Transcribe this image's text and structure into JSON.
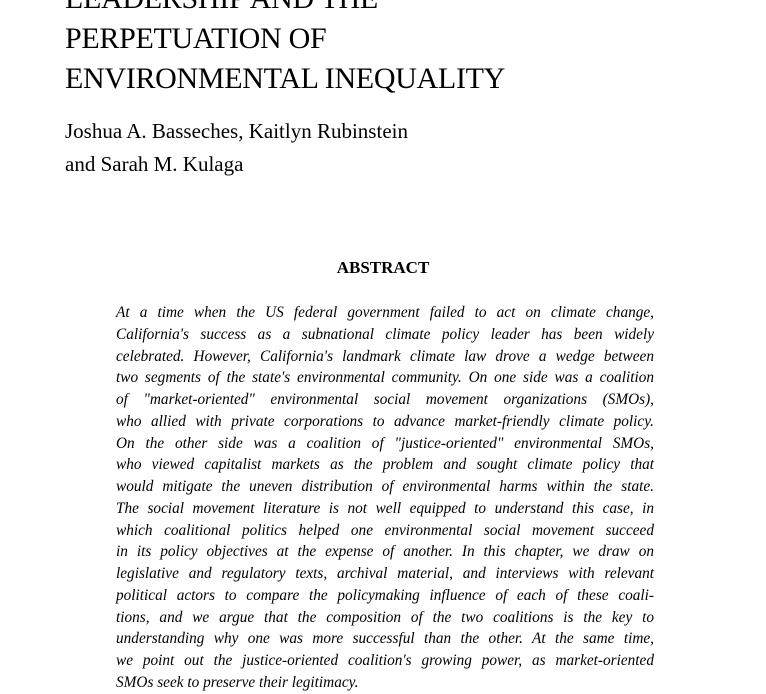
{
  "title_lines": [
    "LEADERSHIP AND THE",
    "PERPETUATION OF",
    "ENVIRONMENTAL INEQUALITY"
  ],
  "author_lines": [
    "Joshua A. Basseches, Kaitlyn Rubinstein",
    "and Sarah M. Kulaga"
  ],
  "abstract_heading": "ABSTRACT",
  "abstract_lines": [
    "At a time when the US federal government failed to act on climate change,",
    "California's success as a subnational climate policy leader has been widely",
    "celebrated. However, California's landmark climate law drove a wedge between",
    "two segments of the state's environmental community. On one side was a coalition",
    "of \"market-oriented\" environmental social movement organizations (SMOs),",
    "who allied with private corporations to advance market-friendly climate policy.",
    "On the other side was a coalition of \"justice-oriented\" environmental SMOs,",
    "who viewed capitalist markets as the problem and sought climate policy that",
    "would mitigate the uneven distribution of environmental harms within the state.",
    "The social movement literature is not well equipped to understand this case, in",
    "which coalitional politics helped one environmental social movement succeed",
    "in its policy objectives at the expense of another. In this chapter, we draw on",
    "legislative and regulatory texts, archival material, and interviews with relevant",
    "political actors to compare the policymaking influence of each of these coali-",
    "tions, and we argue that the composition of the two coalitions is the key to",
    "understanding why one was more successful than the other. At the same time,",
    "we point out the justice-oriented coalition's growing power, as market-oriented",
    "SMOs seek to preserve their legitimacy."
  ]
}
